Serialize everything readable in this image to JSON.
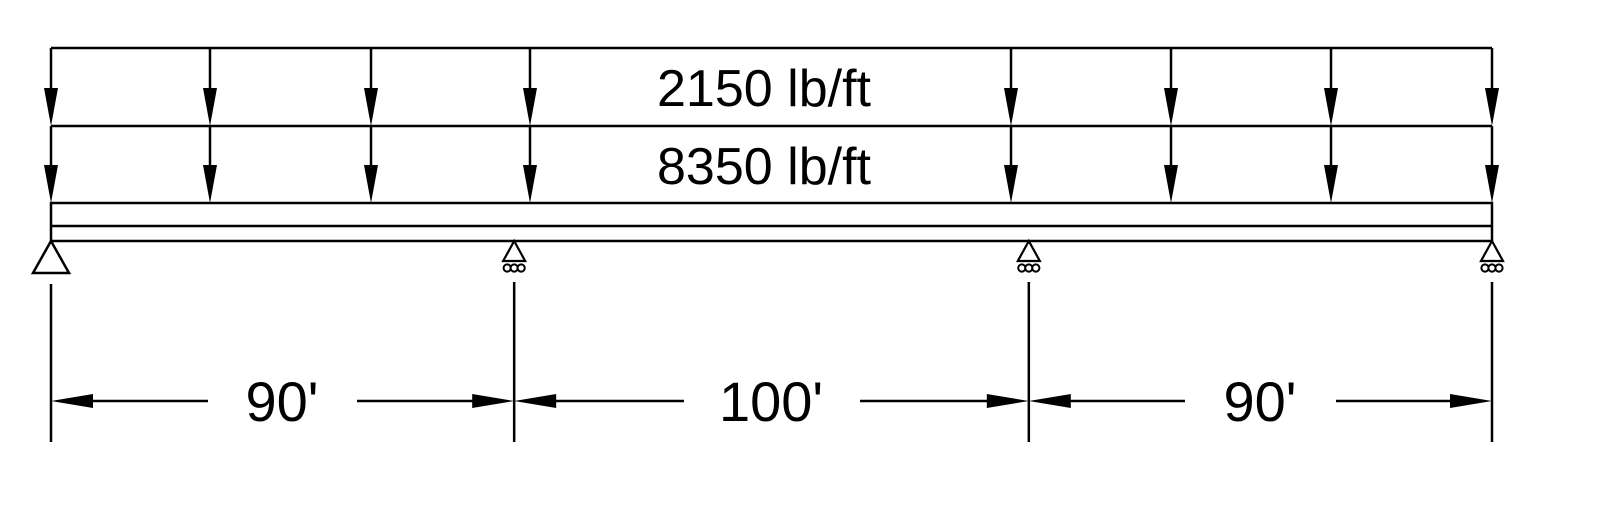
{
  "loads": {
    "upper": {
      "label": "2150 lb/ft"
    },
    "lower": {
      "label": "8350 lb/ft"
    }
  },
  "spans": [
    {
      "label": "90'",
      "length_ft": 90
    },
    {
      "label": "100'",
      "length_ft": 100
    },
    {
      "label": "90'",
      "length_ft": 90
    }
  ],
  "supports": [
    {
      "type": "pin"
    },
    {
      "type": "roller"
    },
    {
      "type": "roller"
    },
    {
      "type": "roller"
    }
  ],
  "colors": {
    "ink": "#000000",
    "background": "#ffffff"
  }
}
